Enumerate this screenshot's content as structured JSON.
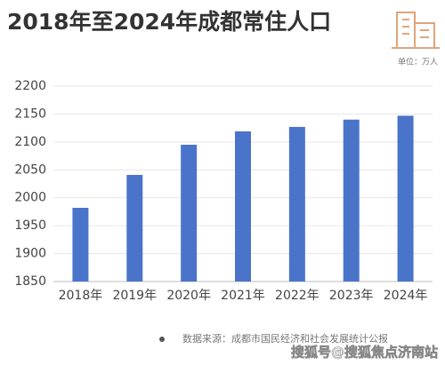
{
  "chart_data": {
    "type": "bar",
    "title": "2018年至2024年成都常住人口",
    "unit": "单位：万人",
    "categories": [
      "2018年",
      "2019年",
      "2020年",
      "2021年",
      "2022年",
      "2023年",
      "2024年"
    ],
    "values": [
      1982,
      2041,
      2095,
      2119,
      2127,
      2140,
      2147
    ],
    "color": "#4a74c9",
    "ylim": [
      1850,
      2200
    ],
    "yticks": [
      1850,
      1900,
      1950,
      2000,
      2050,
      2100,
      2150,
      2200
    ],
    "grid": true,
    "source": "数据来源：成都市国民经济和社会发展统计公报",
    "watermark": "搜狐号@搜狐焦点济南站"
  }
}
